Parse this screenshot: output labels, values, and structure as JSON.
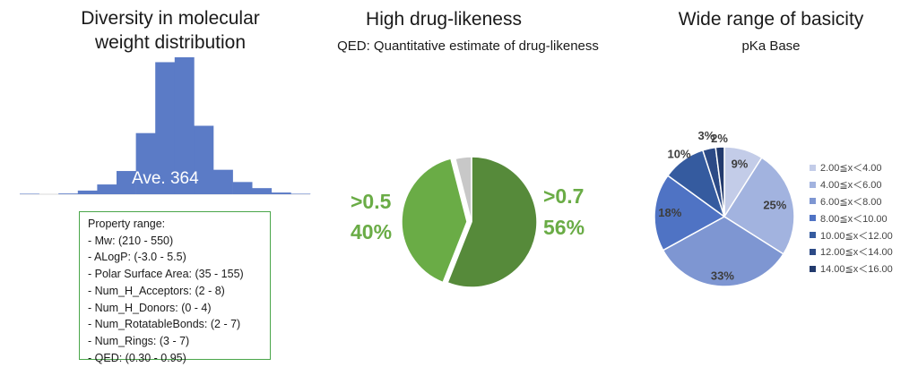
{
  "panels": {
    "histogram": {
      "title_line1": "Diversity in molecular",
      "title_line2": "weight distribution",
      "avg_label": "Ave. 364"
    },
    "qed": {
      "title": "High drug-likeness",
      "subtitle": "QED: Quantitative estimate of drug-likeness",
      "left_label": ">0.5",
      "left_pct": "40%",
      "right_label": ">0.7",
      "right_pct": "56%"
    },
    "pka": {
      "title": "Wide range of basicity",
      "subtitle": "pKa Base"
    }
  },
  "property_range": {
    "title": "Property range:",
    "items": [
      "-  Mw: (210 - 550)",
      "-  ALogP: (-3.0 - 5.5)",
      "-  Polar Surface Area: (35 - 155)",
      "-  Num_H_Acceptors: (2 - 8)",
      "-  Num_H_Donors: (0 - 4)",
      "-  Num_RotatableBonds: (2 - 7)",
      "-  Num_Rings: (3 - 7)",
      "-  QED: (0.30 - 0.95)"
    ]
  },
  "colors": {
    "hist_bar": "#5b7bc6",
    "qed_dark": "#568a3a",
    "qed_light": "#6aac46",
    "qed_grey": "#c8c8c8",
    "qed_text": "#6aac46",
    "box_border": "#4aa64a"
  },
  "chart_data": [
    {
      "type": "bar",
      "title": "Diversity in molecular weight distribution",
      "annotation": "Ave. 364",
      "values": [
        0.2,
        0,
        0.3,
        1.5,
        4,
        9.5,
        25,
        54,
        56,
        28,
        10,
        5,
        2.5,
        0.7,
        0.2
      ],
      "ylim": [
        0,
        56
      ]
    },
    {
      "type": "pie",
      "title": "High drug-likeness",
      "subtitle": "QED: Quantitative estimate of drug-likeness",
      "slices": [
        {
          "label": ">0.7",
          "value": 56,
          "color": "#568a3a"
        },
        {
          "label": ">0.5",
          "value": 40,
          "color": "#6aac46"
        },
        {
          "label": "",
          "value": 4,
          "color": "#c8c8c8"
        }
      ]
    },
    {
      "type": "pie",
      "title": "Wide range of basicity",
      "subtitle": "pKa Base",
      "slices": [
        {
          "label": "2.00≦x＜4.00",
          "value": 9,
          "text": "9%",
          "color": "#c3cce8"
        },
        {
          "label": "4.00≦x＜6.00",
          "value": 25,
          "text": "25%",
          "color": "#a2b3df"
        },
        {
          "label": "6.00≦x＜8.00",
          "value": 33,
          "text": "33%",
          "color": "#7e96d2"
        },
        {
          "label": "8.00≦x＜10.00",
          "value": 18,
          "text": "18%",
          "color": "#4f73c4"
        },
        {
          "label": "10.00≦x＜12.00",
          "value": 10,
          "text": "10%",
          "color": "#355b9f"
        },
        {
          "label": "12.00≦x＜14.00",
          "value": 3,
          "text": "3%",
          "color": "#2c4a86"
        },
        {
          "label": "14.00≦x＜16.00",
          "value": 2,
          "text": "2%",
          "color": "#223a6d"
        }
      ]
    }
  ]
}
